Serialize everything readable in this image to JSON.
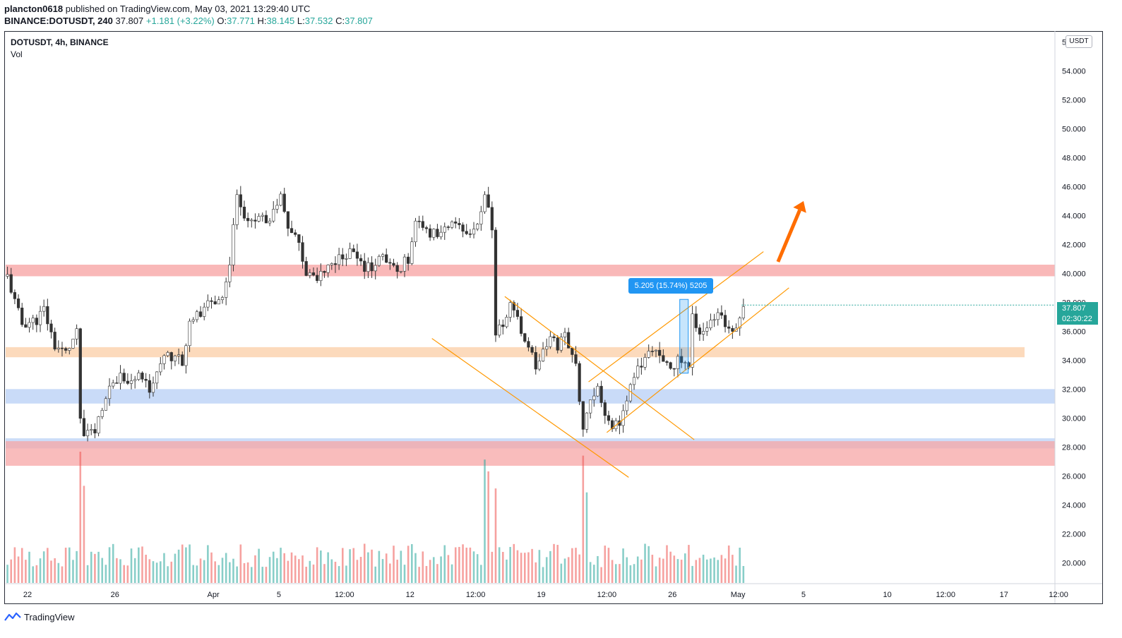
{
  "header": {
    "username": "plancton0618",
    "published_text": "published on TradingView.com, May 03, 2021 13:29:40 UTC",
    "symbol": "BINANCE:DOTUSDT, 240",
    "last": "37.807",
    "change": "+1.181 (+3.22%)",
    "o_label": "O:",
    "o_value": "37.771",
    "h_label": "H:",
    "h_value": "38.145",
    "l_label": "L:",
    "l_value": "37.532",
    "c_label": "C:",
    "c_value": "37.807"
  },
  "legend": {
    "title": "DOTUSDT, 4h, BINANCE",
    "volume": "Vol"
  },
  "price_scale": {
    "unit": "USDT",
    "current_price": "37.807",
    "countdown": "02:30:22"
  },
  "measure": {
    "label": "5.205 (15.74%) 5205"
  },
  "footer": {
    "brand": "TradingView"
  },
  "colors": {
    "up": "#26a69a",
    "down": "#ef5350",
    "trendline": "#ff9800",
    "resistance_zone": "#f7a6a6",
    "mid_zone": "#fbd4b0",
    "support_zone": "#b7cff5",
    "arrow": "#ff6d00"
  },
  "chart_data": {
    "type": "candlestick",
    "y_axis": {
      "range": [
        18.6,
        56.7
      ],
      "ticks": [
        "56.000",
        "54.000",
        "52.000",
        "50.000",
        "48.000",
        "46.000",
        "44.000",
        "42.000",
        "40.000",
        "38.000",
        "36.000",
        "34.000",
        "32.000",
        "30.000",
        "28.000",
        "26.000",
        "24.000",
        "22.000",
        "20.000"
      ]
    },
    "x_axis": {
      "bar_range": [
        0,
        288
      ],
      "ticks": [
        {
          "label": "22",
          "bar": 6
        },
        {
          "label": "26",
          "bar": 30
        },
        {
          "label": "Apr",
          "bar": 57
        },
        {
          "label": "5",
          "bar": 75
        },
        {
          "label": "12:00",
          "bar": 93
        },
        {
          "label": "12",
          "bar": 111
        },
        {
          "label": "12:00",
          "bar": 129
        },
        {
          "label": "19",
          "bar": 147
        },
        {
          "label": "12:00",
          "bar": 165
        },
        {
          "label": "26",
          "bar": 183
        },
        {
          "label": "May",
          "bar": 201
        },
        {
          "label": "5",
          "bar": 219
        },
        {
          "label": "10",
          "bar": 242
        },
        {
          "label": "12:00",
          "bar": 258
        },
        {
          "label": "17",
          "bar": 274
        },
        {
          "label": "12:00",
          "bar": 289
        }
      ]
    },
    "price_path": [
      [
        0,
        39.8
      ],
      [
        2,
        38.0
      ],
      [
        4,
        36.5
      ],
      [
        8,
        36.8
      ],
      [
        10,
        37.5
      ],
      [
        13,
        35.0
      ],
      [
        16,
        34.5
      ],
      [
        18,
        35.4
      ],
      [
        19,
        35.8
      ],
      [
        20,
        30.0
      ],
      [
        21,
        28.8
      ],
      [
        24,
        29.0
      ],
      [
        26,
        30.5
      ],
      [
        29,
        32.5
      ],
      [
        31,
        33.0
      ],
      [
        34,
        32.5
      ],
      [
        36,
        33.0
      ],
      [
        39,
        32.0
      ],
      [
        41,
        33.5
      ],
      [
        44,
        34.2
      ],
      [
        48,
        34.0
      ],
      [
        50,
        36.5
      ],
      [
        52,
        37.0
      ],
      [
        55,
        38.0
      ],
      [
        58,
        37.8
      ],
      [
        61,
        40.5
      ],
      [
        63,
        45.5
      ],
      [
        66,
        43.5
      ],
      [
        68,
        44.0
      ],
      [
        71,
        43.5
      ],
      [
        73,
        44.5
      ],
      [
        75,
        45.5
      ],
      [
        77,
        43.0
      ],
      [
        80,
        42.0
      ],
      [
        82,
        40.0
      ],
      [
        84,
        39.5
      ],
      [
        86,
        39.8
      ],
      [
        88,
        40.5
      ],
      [
        91,
        41.0
      ],
      [
        94,
        41.5
      ],
      [
        97,
        40.5
      ],
      [
        100,
        40.5
      ],
      [
        103,
        41.0
      ],
      [
        106,
        40.2
      ],
      [
        108,
        40.5
      ],
      [
        110,
        41.0
      ],
      [
        112,
        43.5
      ],
      [
        115,
        43.0
      ],
      [
        118,
        42.5
      ],
      [
        121,
        43.5
      ],
      [
        124,
        43.0
      ],
      [
        127,
        42.5
      ],
      [
        129,
        43.5
      ],
      [
        131,
        45.5
      ],
      [
        133,
        43.0
      ],
      [
        134,
        36.0
      ],
      [
        136,
        36.5
      ],
      [
        138,
        38.0
      ],
      [
        139,
        37.5
      ],
      [
        141,
        36.0
      ],
      [
        143,
        35.0
      ],
      [
        145,
        33.5
      ],
      [
        147,
        34.5
      ],
      [
        149,
        35.5
      ],
      [
        151,
        35.0
      ],
      [
        153,
        35.8
      ],
      [
        155,
        34.5
      ],
      [
        156,
        33.5
      ],
      [
        158,
        29.5
      ],
      [
        160,
        31.5
      ],
      [
        162,
        32.0
      ],
      [
        164,
        30.5
      ],
      [
        166,
        29.5
      ],
      [
        168,
        29.8
      ],
      [
        170,
        31.0
      ],
      [
        172,
        33.0
      ],
      [
        175,
        34.0
      ],
      [
        177,
        35.0
      ],
      [
        179,
        34.0
      ],
      [
        181,
        33.5
      ],
      [
        183,
        33.8
      ],
      [
        185,
        34.0
      ],
      [
        187,
        33.5
      ],
      [
        188,
        37.0
      ],
      [
        190,
        36.0
      ],
      [
        193,
        36.5
      ],
      [
        195,
        37.0
      ],
      [
        197,
        36.5
      ],
      [
        199,
        36.2
      ],
      [
        201,
        37.0
      ],
      [
        202,
        37.8
      ]
    ],
    "volume_range": [
      0,
      1
    ],
    "volume_spikes": [
      {
        "bar": 20,
        "value": 1.0
      },
      {
        "bar": 21,
        "value": 0.74
      },
      {
        "bar": 131,
        "value": 0.94
      },
      {
        "bar": 132,
        "value": 0.85
      },
      {
        "bar": 134,
        "value": 0.72
      },
      {
        "bar": 158,
        "value": 0.97
      },
      {
        "bar": 159,
        "value": 0.69
      }
    ],
    "zones": [
      {
        "kind": "resistance",
        "from": 39.8,
        "to": 40.6
      },
      {
        "kind": "pivot",
        "from": 34.2,
        "to": 34.9
      },
      {
        "kind": "support",
        "from": 31.0,
        "to": 32.0
      },
      {
        "kind": "support-low",
        "from": 27.9,
        "to": 28.6
      },
      {
        "kind": "demand",
        "from": 26.7,
        "to": 28.4
      }
    ],
    "trendlines": [
      {
        "from": [
          117,
          35.5
        ],
        "to": [
          171,
          25.9
        ]
      },
      {
        "from": [
          137,
          38.4
        ],
        "to": [
          189,
          28.5
        ]
      },
      {
        "from": [
          160,
          32.5
        ],
        "to": [
          208,
          41.5
        ]
      },
      {
        "from": [
          165,
          29.0
        ],
        "to": [
          215,
          39.0
        ]
      }
    ],
    "measure_range": {
      "bar": 186,
      "from": 33.1,
      "to": 38.2
    },
    "projection_arrow": {
      "from": [
        212,
        40.8
      ],
      "to": [
        219,
        45.0
      ]
    },
    "last_price": 37.807
  }
}
